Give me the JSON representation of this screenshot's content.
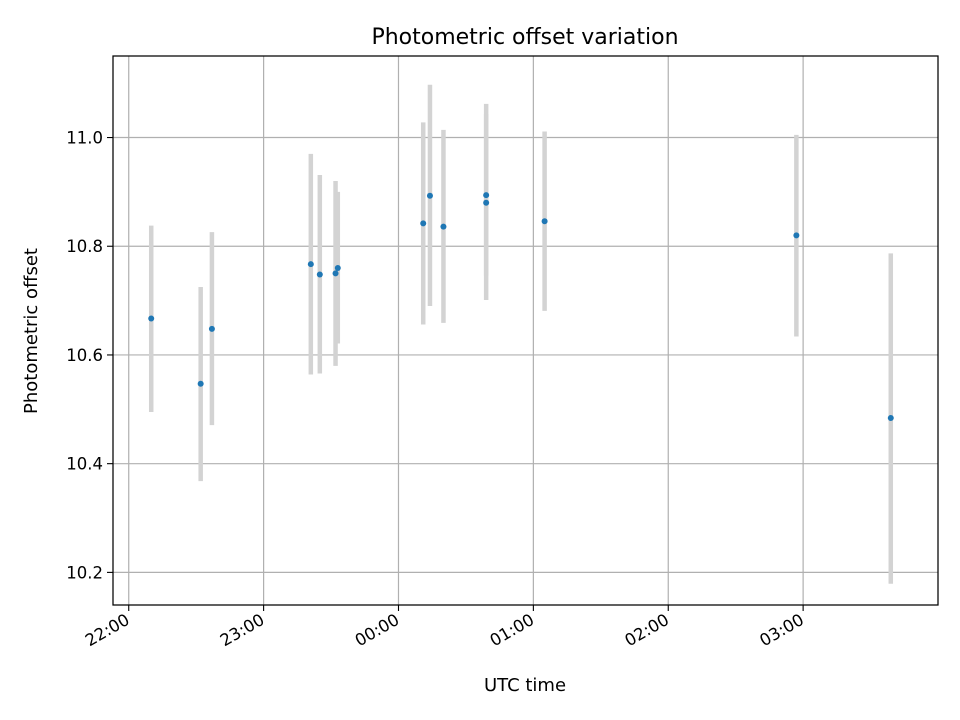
{
  "chart_data": {
    "type": "scatter",
    "title": "Photometric offset variation",
    "xlabel": "UTC time",
    "ylabel": "Photometric offset",
    "x_axis_kind": "time",
    "xlim": [
      "21:53",
      "04:00"
    ],
    "ylim": [
      10.14,
      11.15
    ],
    "x_ticks": [
      "22:00",
      "23:00",
      "00:00",
      "01:00",
      "02:00",
      "03:00"
    ],
    "y_ticks": [
      "10.2",
      "10.4",
      "10.6",
      "10.8",
      "11.0"
    ],
    "grid": true,
    "colors": {
      "points": "#1f77b4",
      "error_bars": "#d3d3d3",
      "grid": "#b0b0b0"
    },
    "points": [
      {
        "x": "22:10",
        "y": 10.667,
        "err_low": 10.495,
        "err_high": 10.838
      },
      {
        "x": "22:32",
        "y": 10.547,
        "err_low": 10.368,
        "err_high": 10.725
      },
      {
        "x": "22:37",
        "y": 10.648,
        "err_low": 10.471,
        "err_high": 10.826
      },
      {
        "x": "23:21",
        "y": 10.767,
        "err_low": 10.564,
        "err_high": 10.97
      },
      {
        "x": "23:25",
        "y": 10.748,
        "err_low": 10.566,
        "err_high": 10.931
      },
      {
        "x": "23:32",
        "y": 10.75,
        "err_low": 10.58,
        "err_high": 10.92
      },
      {
        "x": "23:33",
        "y": 10.76,
        "err_low": 10.621,
        "err_high": 10.9
      },
      {
        "x": "00:11",
        "y": 10.842,
        "err_low": 10.656,
        "err_high": 11.028
      },
      {
        "x": "00:14",
        "y": 10.893,
        "err_low": 10.69,
        "err_high": 11.097
      },
      {
        "x": "00:20",
        "y": 10.836,
        "err_low": 10.659,
        "err_high": 11.014
      },
      {
        "x": "00:39",
        "y": 10.894,
        "err_low": 10.746,
        "err_high": 11.043
      },
      {
        "x": "00:39",
        "y": 10.88,
        "err_low": 10.701,
        "err_high": 11.062
      },
      {
        "x": "01:05",
        "y": 10.846,
        "err_low": 10.681,
        "err_high": 11.011
      },
      {
        "x": "02:57",
        "y": 10.82,
        "err_low": 10.634,
        "err_high": 11.005
      },
      {
        "x": "03:39",
        "y": 10.484,
        "err_low": 10.179,
        "err_high": 10.787
      }
    ]
  }
}
